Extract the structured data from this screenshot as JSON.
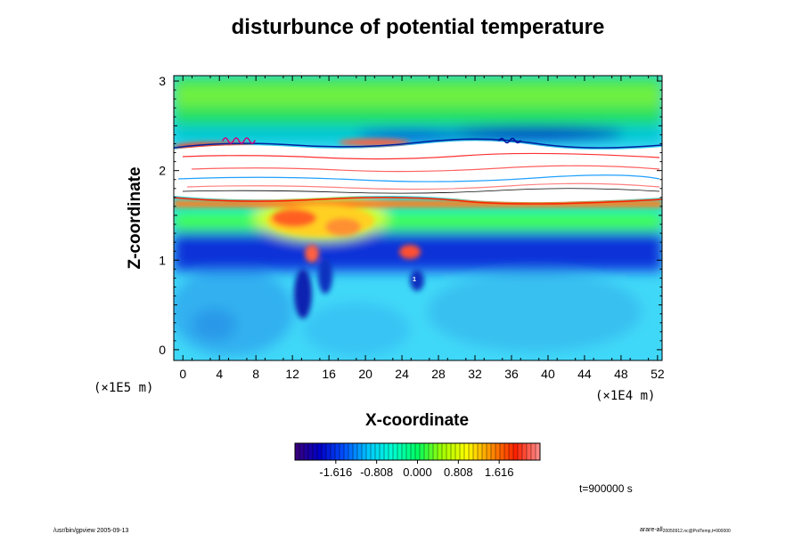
{
  "chart_data": {
    "type": "heatmap",
    "title": "disturbunce of potential temperature",
    "xlabel": "X-coordinate",
    "ylabel": "Z-coordinate",
    "xunit": "(×1E4 m)",
    "yunit": "(×1E5 m)",
    "xlim": [
      -1,
      52.5
    ],
    "ylim": [
      -0.12,
      3.06
    ],
    "xticks": [
      0,
      4,
      8,
      12,
      16,
      20,
      24,
      28,
      32,
      36,
      40,
      44,
      48,
      52
    ],
    "xticklabels": [
      "0",
      "4",
      "8",
      "12",
      "16",
      "20",
      "24",
      "28",
      "32",
      "36",
      "40",
      "44",
      "48",
      "52"
    ],
    "yticks": [
      0,
      1,
      2,
      3
    ],
    "yticklabels": [
      "0",
      "1",
      "2",
      "3"
    ],
    "colorbar": {
      "range": [
        -2.424,
        2.424
      ],
      "ticks": [
        -1.616,
        -0.808,
        0.0,
        0.808,
        1.616
      ],
      "ticklabels": [
        "-1.616",
        "-0.808",
        "0.000",
        "0.808",
        "1.616"
      ],
      "colors": [
        "#3a0078",
        "#0000c8",
        "#0050ff",
        "#00c8ff",
        "#00ffd0",
        "#00ff60",
        "#a0ff00",
        "#ffff00",
        "#ff9000",
        "#ff2000",
        "#ff9090"
      ]
    },
    "annotation": "t=900000 s"
  },
  "footer": {
    "left": "/usr/bin/gpview 2005-09-13",
    "right": "arare-all",
    "right_sub": "20050912.nc@PotTemp,t=900000"
  }
}
